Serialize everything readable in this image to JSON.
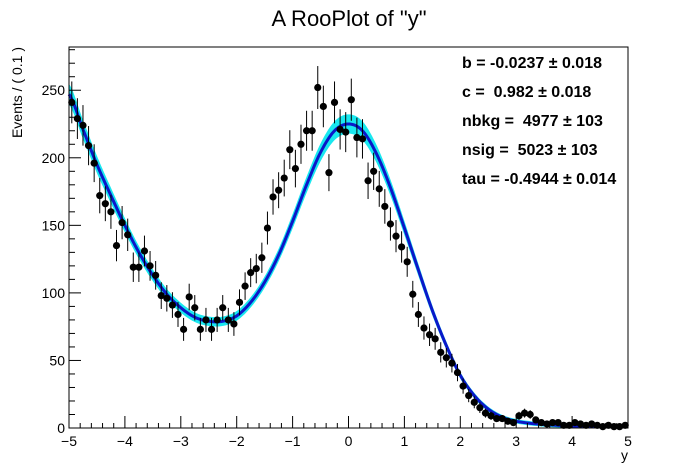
{
  "chart_data": {
    "type": "scatter",
    "title": "A RooPlot of \"y\"",
    "xlabel": "y",
    "ylabel": "Events / ( 0.1 )",
    "xlim": [
      -5,
      5
    ],
    "ylim": [
      0,
      282
    ],
    "x_ticks": [
      "−5",
      "−4",
      "−3",
      "−2",
      "−1",
      "0",
      "1",
      "2",
      "3",
      "4",
      "5"
    ],
    "y_ticks": [
      "0",
      "50",
      "100",
      "150",
      "200",
      "250"
    ],
    "grid": false,
    "colors": {
      "data_points": "#000000",
      "fit_curve": "#0b18c9",
      "error_band": "#19e8ef",
      "frame": "#000000"
    },
    "series": [
      {
        "x": [
          -4.95,
          -4.85,
          -4.75,
          -4.65,
          -4.55,
          -4.45,
          -4.35,
          -4.25,
          -4.15,
          -4.05,
          -3.95,
          -3.85,
          -3.75,
          -3.65,
          -3.55,
          -3.45,
          -3.35,
          -3.25,
          -3.15,
          -3.05,
          -2.95,
          -2.85,
          -2.75,
          -2.65,
          -2.55,
          -2.45,
          -2.35,
          -2.25,
          -2.15,
          -2.05,
          -1.95,
          -1.85,
          -1.75,
          -1.65,
          -1.55,
          -1.45,
          -1.35,
          -1.25,
          -1.15,
          -1.05,
          -0.95,
          -0.85,
          -0.75,
          -0.65,
          -0.55,
          -0.45,
          -0.35,
          -0.25,
          -0.15,
          -0.05,
          0.05,
          0.15,
          0.25,
          0.35,
          0.45,
          0.55,
          0.65,
          0.75,
          0.85,
          0.95,
          1.05,
          1.15,
          1.25,
          1.35,
          1.45,
          1.55,
          1.65,
          1.75,
          1.85,
          1.95,
          2.05,
          2.15,
          2.25,
          2.35,
          2.45,
          2.55,
          2.65,
          2.75,
          2.85,
          2.95,
          3.05,
          3.15,
          3.25,
          3.35,
          3.45,
          3.55,
          3.65,
          3.75,
          3.85,
          3.95,
          4.05,
          4.15,
          4.25,
          4.35,
          4.45,
          4.55,
          4.65,
          4.75,
          4.85,
          4.95
        ],
        "y": [
          241,
          229,
          224,
          209,
          196,
          172,
          166,
          160,
          135,
          152,
          143,
          119,
          119,
          131,
          120,
          113,
          98,
          96,
          91,
          84,
          73,
          97,
          89,
          73,
          80,
          73,
          80,
          89,
          80,
          77,
          93,
          105,
          115,
          118,
          126,
          148,
          171,
          176,
          185,
          206,
          192,
          210,
          220,
          220,
          252,
          238,
          189,
          241,
          221,
          219,
          243,
          215,
          214,
          183,
          190,
          177,
          164,
          151,
          142,
          134,
          123,
          99,
          84,
          74,
          69,
          66,
          56,
          52,
          48,
          41,
          31,
          24,
          19,
          15,
          11,
          9,
          7,
          7,
          5,
          4,
          9,
          11,
          10,
          6,
          4,
          3,
          4,
          4,
          2,
          2,
          4,
          3,
          2,
          3,
          2,
          1,
          2,
          1,
          1,
          2
        ],
        "err": [
          15.5,
          15.1,
          15,
          14.5,
          14,
          13.1,
          12.9,
          12.6,
          11.6,
          12.3,
          12,
          10.9,
          10.9,
          11.4,
          11,
          10.6,
          9.9,
          9.8,
          9.5,
          9.2,
          8.5,
          9.8,
          9.4,
          8.5,
          8.9,
          8.5,
          8.9,
          9.4,
          8.9,
          8.8,
          9.6,
          10.2,
          10.7,
          10.9,
          11.2,
          12.2,
          13.1,
          13.3,
          13.6,
          14.4,
          13.9,
          14.5,
          14.8,
          14.8,
          15.9,
          15.4,
          13.7,
          15.5,
          14.9,
          14.8,
          15.6,
          14.7,
          14.6,
          13.5,
          13.8,
          13.3,
          12.8,
          12.3,
          11.9,
          11.6,
          11.1,
          9.9,
          9.2,
          8.6,
          8.3,
          8.1,
          7.5,
          7.2,
          6.9,
          6.4,
          5.6,
          4.9,
          4.4,
          3.9,
          3.3,
          3,
          2.6,
          2.6,
          2.2,
          2,
          3,
          3.3,
          3.2,
          2.4,
          2,
          1.7,
          2,
          2,
          1.4,
          1.4,
          2,
          1.7,
          1.4,
          1.7,
          1.4,
          1,
          1.4,
          1,
          1,
          1.4
        ]
      }
    ],
    "fit": {
      "x": [
        -5,
        -4.75,
        -4.5,
        -4.25,
        -4,
        -3.75,
        -3.5,
        -3.25,
        -3,
        -2.75,
        -2.5,
        -2.25,
        -2,
        -1.75,
        -1.5,
        -1.25,
        -1,
        -0.75,
        -0.5,
        -0.25,
        0,
        0.25,
        0.5,
        0.75,
        1,
        1.25,
        1.5,
        1.75,
        2,
        2.25,
        2.5,
        2.75,
        3,
        3.25,
        3.5,
        4,
        4.5,
        5
      ],
      "y": [
        247,
        221,
        195,
        172,
        150,
        130,
        113,
        99,
        89,
        82,
        79,
        79,
        83,
        93,
        108,
        128,
        153,
        180,
        204,
        220,
        225,
        220,
        203,
        178,
        148,
        117,
        87,
        61,
        39,
        24,
        14,
        8,
        5,
        3.5,
        2.5,
        1.5,
        1.2,
        1
      ]
    },
    "parameters": [
      {
        "name": "b =",
        "value": "-0.0237",
        "error": "± 0.018"
      },
      {
        "name": "c =",
        "value": " 0.982",
        "error": "± 0.018"
      },
      {
        "name": "nbkg =",
        "value": " 4977",
        "error": "± 103"
      },
      {
        "name": "nsig =",
        "value": " 5023",
        "error": "± 103"
      },
      {
        "name": "tau =",
        "value": "-0.4944",
        "error": "± 0.014"
      }
    ]
  }
}
